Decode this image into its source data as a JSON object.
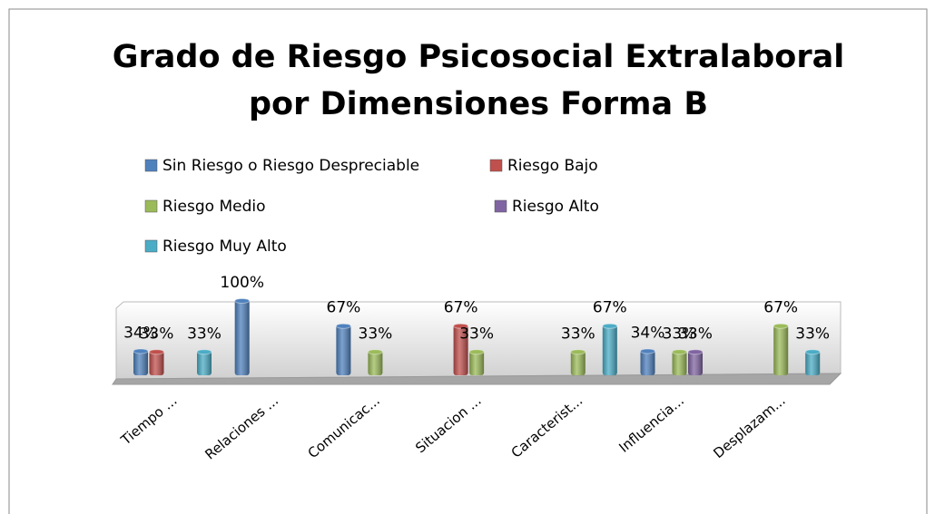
{
  "chart_data": {
    "type": "bar3d",
    "title": [
      "Grado de Riesgo Psicosocial Extralaboral",
      "por Dimensiones Forma B"
    ],
    "categories": [
      "Tiempo ...",
      "Relaciones ...",
      "Comunicac...",
      "Situacion ...",
      "Caracterist...",
      "Influencia...",
      "Desplazam..."
    ],
    "series": [
      {
        "name": "Sin Riesgo  o Riesgo Despreciable",
        "color": "#4f81bd",
        "values": [
          34,
          100,
          67,
          null,
          null,
          34,
          null
        ],
        "value_labels": [
          "34%",
          "100%",
          "67%",
          null,
          null,
          "34%",
          null
        ]
      },
      {
        "name": "Riesgo Bajo",
        "color": "#c0504d",
        "values": [
          33,
          null,
          null,
          67,
          null,
          null,
          null
        ],
        "value_labels": [
          "33%",
          null,
          null,
          "67%",
          null,
          null,
          null
        ]
      },
      {
        "name": "Riesgo Medio",
        "color": "#9bbb59",
        "values": [
          null,
          null,
          33,
          33,
          33,
          33,
          67
        ],
        "value_labels": [
          null,
          null,
          "33%",
          "33%",
          "33%",
          "33%",
          "67%"
        ]
      },
      {
        "name": "Riesgo Alto",
        "color": "#8064a2",
        "values": [
          null,
          null,
          null,
          null,
          null,
          33,
          null
        ],
        "value_labels": [
          null,
          null,
          null,
          null,
          null,
          "33%",
          null
        ]
      },
      {
        "name": "Riesgo  Muy Alto",
        "color": "#4bacc6",
        "values": [
          33,
          null,
          null,
          null,
          67,
          null,
          33
        ],
        "value_labels": [
          "33%",
          null,
          null,
          null,
          "67%",
          null,
          "33%"
        ]
      }
    ],
    "ylim": [
      0,
      100
    ],
    "legend": "top"
  }
}
